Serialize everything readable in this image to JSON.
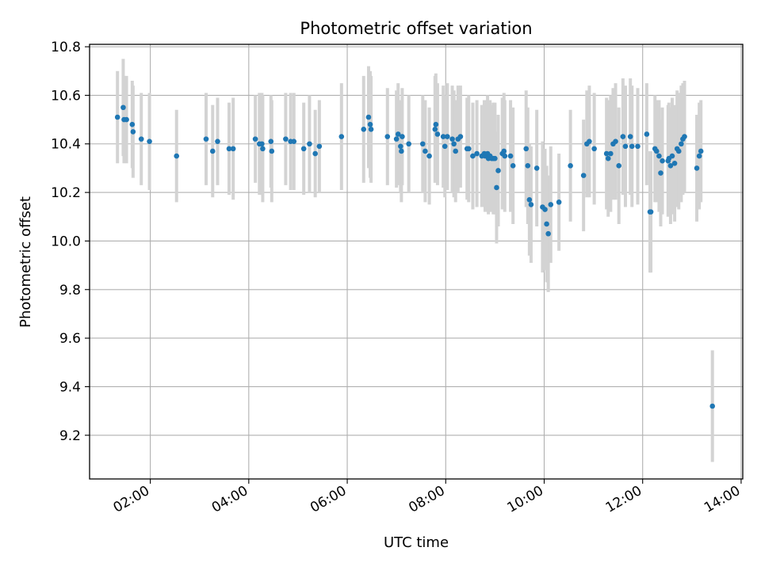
{
  "chart_data": {
    "type": "scatter",
    "title": "Photometric offset variation",
    "xlabel": "UTC time",
    "ylabel": "Photometric offset",
    "x_ticks": [
      "02:00",
      "04:00",
      "06:00",
      "08:00",
      "10:00",
      "12:00",
      "14:00"
    ],
    "y_ticks": [
      "9.2",
      "9.4",
      "9.6",
      "9.8",
      "10.0",
      "10.2",
      "10.4",
      "10.6",
      "10.8"
    ],
    "xlim": [
      "00:46",
      "14:02"
    ],
    "ylim": [
      9.02,
      10.81
    ],
    "grid": true,
    "colors": {
      "marker": "#1f77b4",
      "errorbar": "#d3d3d3"
    },
    "series": [
      {
        "points": [
          [
            "01:20",
            10.51,
            0.19
          ],
          [
            "01:27",
            10.55,
            0.2
          ],
          [
            "01:28",
            10.5,
            0.18
          ],
          [
            "01:31",
            10.5,
            0.18
          ],
          [
            "01:38",
            10.48,
            0.18
          ],
          [
            "01:39",
            10.45,
            0.19
          ],
          [
            "01:49",
            10.42,
            0.19
          ],
          [
            "01:59",
            10.41,
            0.2
          ],
          [
            "02:32",
            10.35,
            0.19
          ],
          [
            "03:08",
            10.42,
            0.19
          ],
          [
            "03:16",
            10.37,
            0.19
          ],
          [
            "03:22",
            10.41,
            0.18
          ],
          [
            "03:36",
            10.38,
            0.19
          ],
          [
            "03:41",
            10.38,
            0.21
          ],
          [
            "04:08",
            10.42,
            0.18
          ],
          [
            "04:13",
            10.4,
            0.21
          ],
          [
            "04:16",
            10.4,
            0.21
          ],
          [
            "04:17",
            10.38,
            0.22
          ],
          [
            "04:27",
            10.41,
            0.19
          ],
          [
            "04:28",
            10.37,
            0.21
          ],
          [
            "04:45",
            10.42,
            0.19
          ],
          [
            "04:51",
            10.41,
            0.2
          ],
          [
            "04:55",
            10.41,
            0.2
          ],
          [
            "05:07",
            10.38,
            0.19
          ],
          [
            "05:14",
            10.4,
            0.2
          ],
          [
            "05:21",
            10.36,
            0.18
          ],
          [
            "05:26",
            10.39,
            0.19
          ],
          [
            "05:53",
            10.43,
            0.22
          ],
          [
            "06:20",
            10.46,
            0.22
          ],
          [
            "06:26",
            10.51,
            0.21
          ],
          [
            "06:28",
            10.48,
            0.22
          ],
          [
            "06:29",
            10.46,
            0.22
          ],
          [
            "06:49",
            10.43,
            0.2
          ],
          [
            "07:00",
            10.42,
            0.2
          ],
          [
            "07:02",
            10.44,
            0.21
          ],
          [
            "07:05",
            10.39,
            0.19
          ],
          [
            "07:06",
            10.37,
            0.21
          ],
          [
            "07:07",
            10.43,
            0.2
          ],
          [
            "07:15",
            10.4,
            0.2
          ],
          [
            "07:32",
            10.4,
            0.2
          ],
          [
            "07:35",
            10.37,
            0.21
          ],
          [
            "07:40",
            10.35,
            0.2
          ],
          [
            "07:47",
            10.46,
            0.22
          ],
          [
            "07:48",
            10.48,
            0.21
          ],
          [
            "07:50",
            10.44,
            0.21
          ],
          [
            "07:57",
            10.43,
            0.21
          ],
          [
            "07:59",
            10.39,
            0.21
          ],
          [
            "08:02",
            10.43,
            0.22
          ],
          [
            "08:08",
            10.42,
            0.22
          ],
          [
            "08:10",
            10.4,
            0.22
          ],
          [
            "08:12",
            10.37,
            0.21
          ],
          [
            "08:15",
            10.42,
            0.22
          ],
          [
            "08:18",
            10.43,
            0.21
          ],
          [
            "08:26",
            10.38,
            0.21
          ],
          [
            "08:28",
            10.38,
            0.22
          ],
          [
            "08:33",
            10.35,
            0.22
          ],
          [
            "08:38",
            10.36,
            0.22
          ],
          [
            "08:44",
            10.35,
            0.21
          ],
          [
            "08:47",
            10.36,
            0.22
          ],
          [
            "08:48",
            10.35,
            0.23
          ],
          [
            "08:51",
            10.36,
            0.24
          ],
          [
            "08:52",
            10.34,
            0.23
          ],
          [
            "08:54",
            10.35,
            0.23
          ],
          [
            "08:56",
            10.34,
            0.22
          ],
          [
            "08:58",
            10.34,
            0.23
          ],
          [
            "09:00",
            10.34,
            0.23
          ],
          [
            "09:02",
            10.22,
            0.23
          ],
          [
            "09:04",
            10.29,
            0.23
          ],
          [
            "09:09",
            10.36,
            0.23
          ],
          [
            "09:11",
            10.37,
            0.24
          ],
          [
            "09:12",
            10.35,
            0.23
          ],
          [
            "09:19",
            10.35,
            0.23
          ],
          [
            "09:22",
            10.31,
            0.24
          ],
          [
            "09:38",
            10.38,
            0.24
          ],
          [
            "09:40",
            10.31,
            0.24
          ],
          [
            "09:42",
            10.17,
            0.23
          ],
          [
            "09:44",
            10.15,
            0.24
          ],
          [
            "09:51",
            10.3,
            0.24
          ],
          [
            "09:58",
            10.14,
            0.27
          ],
          [
            "10:01",
            10.13,
            0.25
          ],
          [
            "10:03",
            10.07,
            0.24
          ],
          [
            "10:05",
            10.03,
            0.24
          ],
          [
            "10:08",
            10.15,
            0.24
          ],
          [
            "10:18",
            10.16,
            0.2
          ],
          [
            "10:32",
            10.31,
            0.23
          ],
          [
            "10:48",
            10.27,
            0.23
          ],
          [
            "10:52",
            10.4,
            0.22
          ],
          [
            "10:55",
            10.41,
            0.23
          ],
          [
            "11:01",
            10.38,
            0.23
          ],
          [
            "11:16",
            10.36,
            0.23
          ],
          [
            "11:18",
            10.34,
            0.24
          ],
          [
            "11:21",
            10.36,
            0.24
          ],
          [
            "11:24",
            10.4,
            0.23
          ],
          [
            "11:27",
            10.41,
            0.24
          ],
          [
            "11:31",
            10.31,
            0.24
          ],
          [
            "11:36",
            10.43,
            0.24
          ],
          [
            "11:39",
            10.39,
            0.25
          ],
          [
            "11:45",
            10.43,
            0.24
          ],
          [
            "11:47",
            10.39,
            0.25
          ],
          [
            "11:54",
            10.39,
            0.24
          ],
          [
            "12:05",
            10.44,
            0.21
          ],
          [
            "12:09",
            10.12,
            0.25
          ],
          [
            "12:10",
            10.12,
            0.25
          ],
          [
            "12:15",
            10.38,
            0.22
          ],
          [
            "12:17",
            10.37,
            0.21
          ],
          [
            "12:20",
            10.35,
            0.23
          ],
          [
            "12:22",
            10.28,
            0.22
          ],
          [
            "12:24",
            10.33,
            0.22
          ],
          [
            "12:31",
            10.33,
            0.23
          ],
          [
            "12:32",
            10.34,
            0.23
          ],
          [
            "12:34",
            10.31,
            0.24
          ],
          [
            "12:36",
            10.35,
            0.24
          ],
          [
            "12:39",
            10.32,
            0.24
          ],
          [
            "12:42",
            10.38,
            0.24
          ],
          [
            "12:44",
            10.37,
            0.24
          ],
          [
            "12:47",
            10.4,
            0.24
          ],
          [
            "12:49",
            10.42,
            0.23
          ],
          [
            "12:51",
            10.43,
            0.23
          ],
          [
            "13:06",
            10.3,
            0.22
          ],
          [
            "13:09",
            10.35,
            0.22
          ],
          [
            "13:11",
            10.37,
            0.21
          ],
          [
            "13:25",
            9.32,
            0.23
          ]
        ]
      }
    ]
  }
}
